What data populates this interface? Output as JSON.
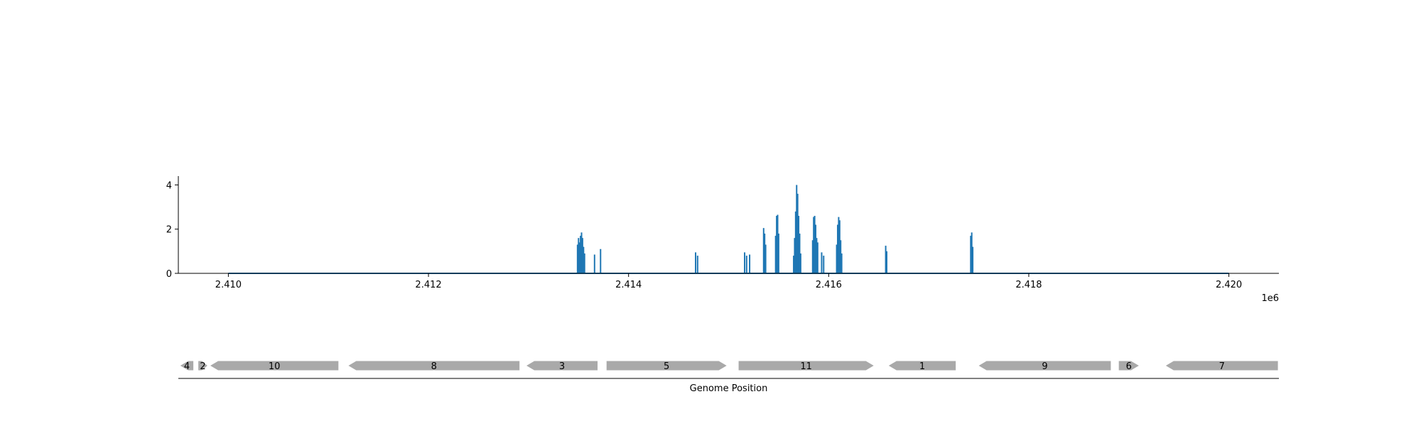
{
  "chart_data": [
    {
      "type": "line",
      "title": "",
      "xlabel": "",
      "ylabel": "",
      "x_offset_label": "1e6",
      "xlim": [
        2409500,
        2420500
      ],
      "ylim": [
        0,
        4.4
      ],
      "x_ticks": [
        2410000,
        2412000,
        2414000,
        2416000,
        2418000,
        2420000
      ],
      "x_tick_labels": [
        "2.410",
        "2.412",
        "2.414",
        "2.416",
        "2.418",
        "2.420"
      ],
      "y_ticks": [
        0,
        2,
        4
      ],
      "y_tick_labels": [
        "0",
        "2",
        "4"
      ],
      "baseline_range": [
        2410000,
        2420000
      ],
      "color": "#1f77b4",
      "spikes": [
        {
          "x": 2413490,
          "y": 1.3
        },
        {
          "x": 2413500,
          "y": 1.6
        },
        {
          "x": 2413510,
          "y": 1.4
        },
        {
          "x": 2413520,
          "y": 1.7
        },
        {
          "x": 2413530,
          "y": 1.85
        },
        {
          "x": 2413540,
          "y": 1.6
        },
        {
          "x": 2413550,
          "y": 1.2
        },
        {
          "x": 2413560,
          "y": 0.9
        },
        {
          "x": 2413660,
          "y": 0.85
        },
        {
          "x": 2413720,
          "y": 1.1
        },
        {
          "x": 2414670,
          "y": 0.95
        },
        {
          "x": 2414690,
          "y": 0.8
        },
        {
          "x": 2415160,
          "y": 0.95
        },
        {
          "x": 2415180,
          "y": 0.8
        },
        {
          "x": 2415210,
          "y": 0.85
        },
        {
          "x": 2415350,
          "y": 2.05
        },
        {
          "x": 2415360,
          "y": 1.8
        },
        {
          "x": 2415370,
          "y": 1.3
        },
        {
          "x": 2415470,
          "y": 1.7
        },
        {
          "x": 2415480,
          "y": 2.6
        },
        {
          "x": 2415490,
          "y": 2.65
        },
        {
          "x": 2415500,
          "y": 1.8
        },
        {
          "x": 2415650,
          "y": 0.8
        },
        {
          "x": 2415660,
          "y": 1.6
        },
        {
          "x": 2415670,
          "y": 2.8
        },
        {
          "x": 2415680,
          "y": 4.0
        },
        {
          "x": 2415690,
          "y": 3.6
        },
        {
          "x": 2415700,
          "y": 2.6
        },
        {
          "x": 2415710,
          "y": 1.8
        },
        {
          "x": 2415720,
          "y": 0.9
        },
        {
          "x": 2415840,
          "y": 1.5
        },
        {
          "x": 2415850,
          "y": 2.55
        },
        {
          "x": 2415860,
          "y": 2.6
        },
        {
          "x": 2415870,
          "y": 2.2
        },
        {
          "x": 2415880,
          "y": 1.6
        },
        {
          "x": 2415890,
          "y": 1.4
        },
        {
          "x": 2415930,
          "y": 0.95
        },
        {
          "x": 2415950,
          "y": 0.8
        },
        {
          "x": 2416080,
          "y": 1.3
        },
        {
          "x": 2416090,
          "y": 2.2
        },
        {
          "x": 2416100,
          "y": 2.55
        },
        {
          "x": 2416110,
          "y": 2.4
        },
        {
          "x": 2416120,
          "y": 1.5
        },
        {
          "x": 2416130,
          "y": 0.9
        },
        {
          "x": 2416570,
          "y": 1.25
        },
        {
          "x": 2416580,
          "y": 1.0
        },
        {
          "x": 2417420,
          "y": 1.7
        },
        {
          "x": 2417430,
          "y": 1.85
        },
        {
          "x": 2417440,
          "y": 1.2
        }
      ]
    },
    {
      "type": "gene_map",
      "xlabel": "Genome Position",
      "xlim": [
        2409500,
        2420500
      ],
      "color": "#a9a9a9",
      "genes": [
        {
          "label": "4",
          "start": 2409520,
          "end": 2409650,
          "strand": "-"
        },
        {
          "label": "2",
          "start": 2409700,
          "end": 2409790,
          "strand": "+"
        },
        {
          "label": "10",
          "start": 2409820,
          "end": 2411100,
          "strand": "-"
        },
        {
          "label": "8",
          "start": 2411200,
          "end": 2412910,
          "strand": "-"
        },
        {
          "label": "3",
          "start": 2412980,
          "end": 2413690,
          "strand": "-"
        },
        {
          "label": "5",
          "start": 2413780,
          "end": 2414980,
          "strand": "+"
        },
        {
          "label": "11",
          "start": 2415100,
          "end": 2416450,
          "strand": "+"
        },
        {
          "label": "1",
          "start": 2416600,
          "end": 2417270,
          "strand": "-"
        },
        {
          "label": "9",
          "start": 2417500,
          "end": 2418820,
          "strand": "-"
        },
        {
          "label": "6",
          "start": 2418900,
          "end": 2419100,
          "strand": "+"
        },
        {
          "label": "7",
          "start": 2419370,
          "end": 2420490,
          "strand": "-"
        }
      ]
    }
  ]
}
